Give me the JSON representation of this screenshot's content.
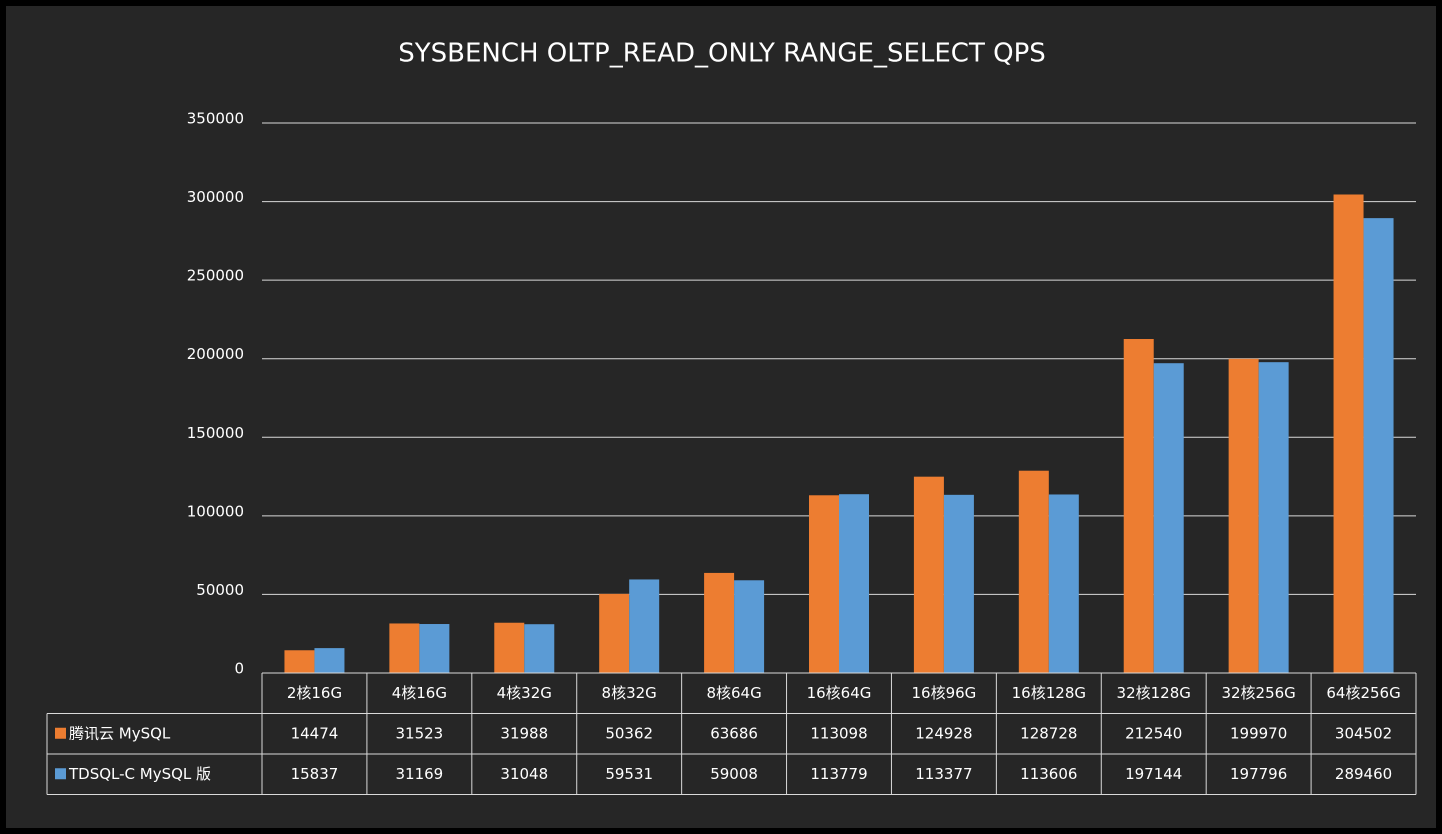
{
  "chart_data": {
    "type": "bar",
    "title": "SYSBENCH OLTP_READ_ONLY RANGE_SELECT QPS",
    "categories": [
      "2核16G",
      "4核16G",
      "4核32G",
      "8核32G",
      "8核64G",
      "16核64G",
      "16核96G",
      "16核128G",
      "32核128G",
      "32核256G",
      "64核256G"
    ],
    "series": [
      {
        "name": "腾讯云 MySQL",
        "color": "#ed7d31",
        "values": [
          14474,
          31523,
          31988,
          50362,
          63686,
          113098,
          124928,
          128728,
          212540,
          199970,
          304502
        ]
      },
      {
        "name": "TDSQL-C MySQL 版",
        "color": "#5b9bd5",
        "values": [
          15837,
          31169,
          31048,
          59531,
          59008,
          113779,
          113377,
          113606,
          197144,
          197796,
          289460
        ]
      }
    ],
    "ylim": [
      0,
      350000
    ],
    "yticks": [
      0,
      50000,
      100000,
      150000,
      200000,
      250000,
      300000,
      350000
    ],
    "grid": true
  }
}
